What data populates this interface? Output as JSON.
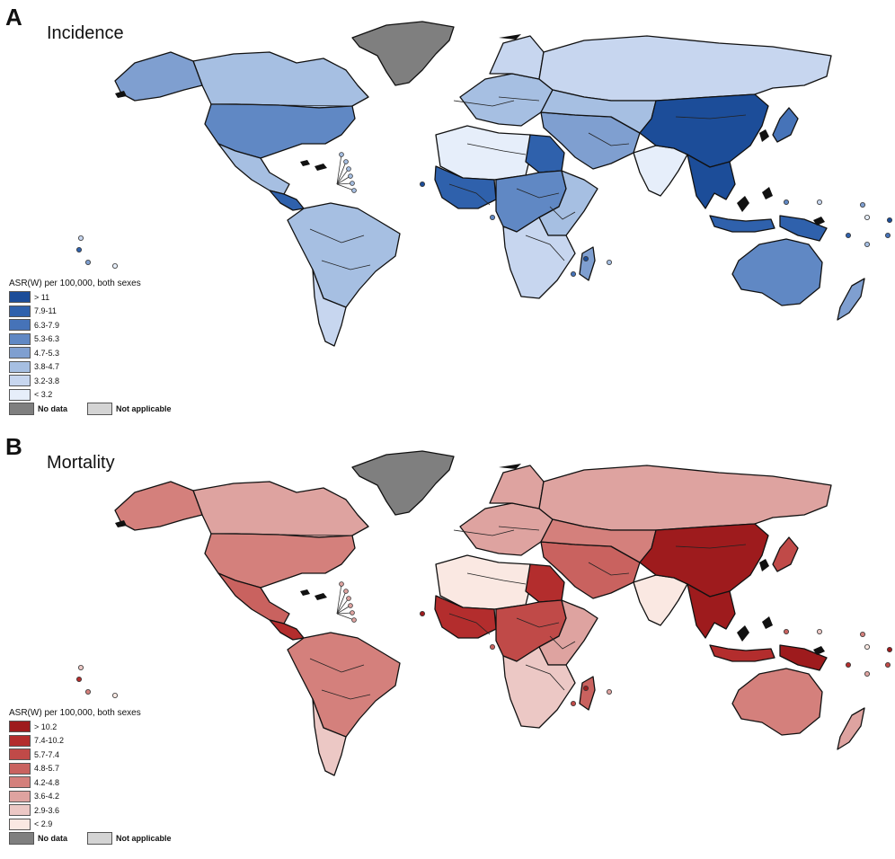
{
  "panels": [
    {
      "letter": "A",
      "title": "Incidence",
      "legend_title": "ASR(W) per 100,000, both sexes",
      "classes": [
        {
          "label": "> 11",
          "color": "#1c4d99"
        },
        {
          "label": "7.9-11",
          "color": "#2f61ac"
        },
        {
          "label": "6.3-7.9",
          "color": "#4673b8"
        },
        {
          "label": "5.3-6.3",
          "color": "#6088c4"
        },
        {
          "label": "4.7-5.3",
          "color": "#7f9fd0"
        },
        {
          "label": "3.8-4.7",
          "color": "#a6bfe2"
        },
        {
          "label": "3.2-3.8",
          "color": "#c7d6ef"
        },
        {
          "label": "< 3.2",
          "color": "#e6eefa"
        }
      ],
      "no_data": {
        "label": "No data",
        "color": "#7f7f7f"
      },
      "not_applicable": {
        "label": "Not applicable",
        "color": "#d4d4d4"
      }
    },
    {
      "letter": "B",
      "title": "Mortality",
      "legend_title": "ASR(W) per 100,000, both sexes",
      "classes": [
        {
          "label": "> 10.2",
          "color": "#9e1b1d"
        },
        {
          "label": "7.4-10.2",
          "color": "#b32d2d"
        },
        {
          "label": "5.7-7.4",
          "color": "#c04a48"
        },
        {
          "label": "4.8-5.7",
          "color": "#c9625f"
        },
        {
          "label": "4.2-4.8",
          "color": "#d4807c"
        },
        {
          "label": "3.6-4.2",
          "color": "#dea3a0"
        },
        {
          "label": "2.9-3.6",
          "color": "#ecc8c5"
        },
        {
          "label": "< 2.9",
          "color": "#fae8e2"
        }
      ],
      "no_data": {
        "label": "No data",
        "color": "#7f7f7f"
      },
      "not_applicable": {
        "label": "Not applicable",
        "color": "#d4d4d4"
      }
    }
  ],
  "regions": [
    {
      "name": "greenland",
      "class": "nodata"
    },
    {
      "name": "canada",
      "class": [
        5,
        5
      ]
    },
    {
      "name": "alaska",
      "class": [
        4,
        4
      ]
    },
    {
      "name": "usa",
      "class": [
        3,
        4
      ]
    },
    {
      "name": "mexico",
      "class": [
        5,
        3
      ]
    },
    {
      "name": "central-america",
      "class": [
        1,
        1
      ]
    },
    {
      "name": "south-america",
      "class": [
        5,
        4
      ]
    },
    {
      "name": "chile-argentina",
      "class": [
        6,
        6
      ]
    },
    {
      "name": "north-africa",
      "class": [
        7,
        7
      ]
    },
    {
      "name": "west-africa",
      "class": [
        1,
        1
      ]
    },
    {
      "name": "egypt",
      "class": [
        1,
        1
      ]
    },
    {
      "name": "central-africa",
      "class": [
        3,
        2
      ]
    },
    {
      "name": "east-africa",
      "class": [
        5,
        5
      ]
    },
    {
      "name": "southern-africa",
      "class": [
        6,
        6
      ]
    },
    {
      "name": "madagascar",
      "class": [
        4,
        3
      ]
    },
    {
      "name": "europe",
      "class": [
        5,
        5
      ]
    },
    {
      "name": "scandinavia",
      "class": [
        6,
        5
      ]
    },
    {
      "name": "russia",
      "class": [
        6,
        5
      ]
    },
    {
      "name": "middle-east",
      "class": [
        4,
        3
      ]
    },
    {
      "name": "central-asia",
      "class": [
        5,
        4
      ]
    },
    {
      "name": "india",
      "class": [
        7,
        7
      ]
    },
    {
      "name": "china",
      "class": [
        0,
        0
      ]
    },
    {
      "name": "southeast-asia",
      "class": [
        0,
        0
      ]
    },
    {
      "name": "japan",
      "class": [
        2,
        2
      ]
    },
    {
      "name": "indonesia",
      "class": [
        1,
        1
      ]
    },
    {
      "name": "new-guinea",
      "class": [
        1,
        0
      ]
    },
    {
      "name": "australia",
      "class": [
        3,
        4
      ]
    },
    {
      "name": "new-zealand",
      "class": [
        4,
        5
      ]
    }
  ]
}
